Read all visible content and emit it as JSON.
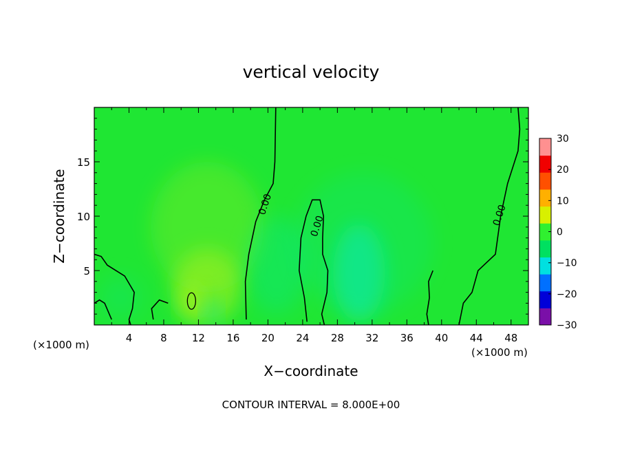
{
  "chart_data": {
    "type": "heatmap",
    "title": "vertical velocity",
    "xlabel": "X−coordinate",
    "ylabel": "Z−coordinate",
    "x_unit_left": "(×1000 m)",
    "x_unit_right": "(×1000 m)",
    "footer": "CONTOUR INTERVAL = 8.000E+00",
    "xlim": [
      0,
      50
    ],
    "ylim": [
      0,
      20
    ],
    "x_ticks": [
      4,
      8,
      12,
      16,
      20,
      24,
      28,
      32,
      36,
      40,
      44,
      48
    ],
    "y_ticks": [
      5,
      10,
      15
    ],
    "colorbar": {
      "min": -30,
      "max": 30,
      "ticks": [
        30,
        20,
        10,
        0,
        -10,
        -20,
        -30
      ],
      "tick_labels": [
        "30",
        "20",
        "10",
        "0",
        "−10",
        "−20",
        "−30"
      ],
      "colors": [
        "#7a0fa8",
        "#0000d8",
        "#0070ff",
        "#00e0e0",
        "#00e060",
        "#30f030",
        "#d8f000",
        "#ffb000",
        "#ff5000",
        "#f00000",
        "#ff9090"
      ]
    },
    "background_color": "#1fe633",
    "contour_label": "0.00",
    "contour_levels_labeled": [
      {
        "label": "0.00",
        "x": 20,
        "y": 11
      },
      {
        "label": "0.00",
        "x": 26,
        "y": 9
      },
      {
        "label": "0.00",
        "x": 47,
        "y": 10
      }
    ],
    "contours": [
      [
        [
          20.9,
          20
        ],
        [
          20.8,
          15
        ],
        [
          20.6,
          13
        ],
        [
          19.6,
          11.5
        ],
        [
          18.6,
          9.5
        ],
        [
          17.8,
          6.5
        ],
        [
          17.4,
          4
        ],
        [
          17.5,
          0.5
        ]
      ],
      [
        [
          24.5,
          0.3
        ],
        [
          24.2,
          2.5
        ],
        [
          23.6,
          5
        ],
        [
          23.8,
          8
        ],
        [
          24.4,
          10
        ],
        [
          25.1,
          11.5
        ],
        [
          26,
          11.5
        ],
        [
          26.4,
          10
        ],
        [
          26.3,
          8
        ],
        [
          26.3,
          6.5
        ],
        [
          26.9,
          5
        ],
        [
          26.8,
          3
        ],
        [
          26.2,
          1
        ],
        [
          26.5,
          0
        ]
      ],
      [
        [
          48.8,
          20
        ],
        [
          49,
          18
        ],
        [
          48.8,
          16
        ],
        [
          47.6,
          13
        ],
        [
          46.8,
          10
        ],
        [
          46.2,
          6.5
        ],
        [
          44.2,
          5
        ],
        [
          43.5,
          3
        ],
        [
          42.5,
          2
        ],
        [
          42,
          0
        ]
      ],
      [
        [
          0,
          6.5
        ],
        [
          0.8,
          6.3
        ],
        [
          1.5,
          5.5
        ],
        [
          3.5,
          4.5
        ],
        [
          4.6,
          3
        ],
        [
          4.4,
          1.5
        ],
        [
          4,
          0.5
        ],
        [
          4.2,
          0
        ]
      ],
      [
        [
          8.5,
          2
        ],
        [
          7.5,
          2.3
        ],
        [
          6.6,
          1.5
        ],
        [
          6.8,
          0.5
        ]
      ],
      [
        [
          39,
          5
        ],
        [
          38.5,
          4
        ],
        [
          38.6,
          2.5
        ],
        [
          38.3,
          1
        ],
        [
          38.5,
          0
        ]
      ],
      [
        [
          0,
          2
        ],
        [
          0.6,
          2.3
        ],
        [
          1.2,
          2
        ],
        [
          2,
          0.5
        ]
      ]
    ],
    "field_blobs": [
      {
        "cx": 30.5,
        "cy": 4.8,
        "rx": 3.0,
        "ry": 4.5,
        "value": -7
      },
      {
        "cx": 31,
        "cy": 7.5,
        "rx": 8.0,
        "ry": 6.5,
        "value": -2
      },
      {
        "cx": 13,
        "cy": 3.5,
        "rx": 4.0,
        "ry": 3.5,
        "value": 6
      },
      {
        "cx": 11.2,
        "cy": 2.2,
        "rx": 1.2,
        "ry": 1.6,
        "value": 9
      },
      {
        "cx": 13,
        "cy": 9,
        "rx": 6.5,
        "ry": 6.0,
        "value": 3
      },
      {
        "cx": 21,
        "cy": 5.5,
        "rx": 3.5,
        "ry": 4.5,
        "value": -3
      },
      {
        "cx": 13.5,
        "cy": 1.2,
        "rx": 0.8,
        "ry": 1.2,
        "value": -6
      },
      {
        "cx": 3,
        "cy": 2.5,
        "rx": 2.5,
        "ry": 2.0,
        "value": -2
      }
    ]
  }
}
